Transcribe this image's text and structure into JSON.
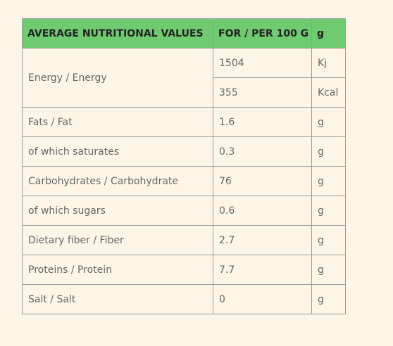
{
  "table": {
    "header": [
      "AVERAGE NUTRITIONAL VALUES",
      "FOR / PER 100 G",
      "g"
    ],
    "rows": [
      {
        "label": "Energy / Energy",
        "entries": [
          {
            "value": 1504,
            "unit": "Kj"
          },
          {
            "value": 355,
            "unit": "Kcal"
          }
        ]
      },
      {
        "label": "Fats / Fat",
        "entries": [
          {
            "value": 1.6,
            "unit": "g"
          }
        ]
      },
      {
        "label": "of which saturates",
        "entries": [
          {
            "value": 0.3,
            "unit": "g"
          }
        ]
      },
      {
        "label": "Carbohydrates / Carbohydrate",
        "entries": [
          {
            "value": 76,
            "unit": "g"
          }
        ]
      },
      {
        "label": "of which sugars",
        "entries": [
          {
            "value": 0.6,
            "unit": "g"
          }
        ]
      },
      {
        "label": "Dietary fiber / Fiber",
        "entries": [
          {
            "value": 2.7,
            "unit": "g"
          }
        ]
      },
      {
        "label": "Proteins / Protein",
        "entries": [
          {
            "value": 7.7,
            "unit": "g"
          }
        ]
      },
      {
        "label": "Salt / Salt",
        "entries": [
          {
            "value": 0,
            "unit": "g"
          }
        ]
      }
    ]
  }
}
